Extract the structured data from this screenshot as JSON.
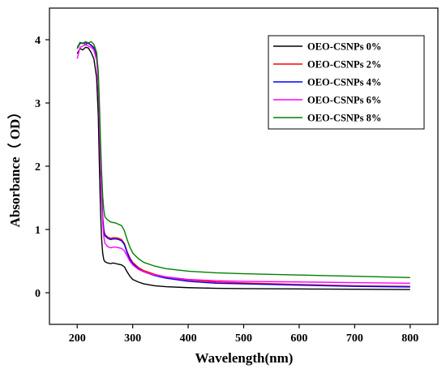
{
  "chart_data": {
    "type": "line",
    "title": "",
    "xlabel": "Wavelength(nm)",
    "ylabel": "Absorbance（ OD）",
    "xlim": [
      150,
      850
    ],
    "ylim": [
      -0.5,
      4.5
    ],
    "xticks": [
      200,
      300,
      400,
      500,
      600,
      700,
      800
    ],
    "yticks": [
      0,
      1,
      2,
      3,
      4
    ],
    "grid": false,
    "legend_position": "top-right",
    "series": [
      {
        "name": "OEO-CSNPs 0%",
        "color": "#000000",
        "points": [
          [
            200,
            3.78
          ],
          [
            205,
            3.86
          ],
          [
            210,
            3.84
          ],
          [
            215,
            3.88
          ],
          [
            220,
            3.87
          ],
          [
            225,
            3.8
          ],
          [
            230,
            3.7
          ],
          [
            235,
            3.4
          ],
          [
            238,
            2.8
          ],
          [
            240,
            2.0
          ],
          [
            242,
            1.3
          ],
          [
            244,
            0.85
          ],
          [
            246,
            0.62
          ],
          [
            248,
            0.52
          ],
          [
            250,
            0.49
          ],
          [
            255,
            0.47
          ],
          [
            260,
            0.46
          ],
          [
            265,
            0.47
          ],
          [
            270,
            0.46
          ],
          [
            275,
            0.45
          ],
          [
            280,
            0.44
          ],
          [
            285,
            0.41
          ],
          [
            290,
            0.33
          ],
          [
            295,
            0.26
          ],
          [
            300,
            0.21
          ],
          [
            310,
            0.17
          ],
          [
            320,
            0.14
          ],
          [
            340,
            0.11
          ],
          [
            360,
            0.095
          ],
          [
            400,
            0.08
          ],
          [
            450,
            0.07
          ],
          [
            500,
            0.065
          ],
          [
            600,
            0.06
          ],
          [
            700,
            0.055
          ],
          [
            800,
            0.05
          ]
        ]
      },
      {
        "name": "OEO-CSNPs 2%",
        "color": "#ff0000",
        "points": [
          [
            200,
            3.88
          ],
          [
            205,
            3.95
          ],
          [
            210,
            3.94
          ],
          [
            215,
            3.96
          ],
          [
            220,
            3.94
          ],
          [
            225,
            3.92
          ],
          [
            230,
            3.88
          ],
          [
            235,
            3.75
          ],
          [
            238,
            3.4
          ],
          [
            240,
            2.8
          ],
          [
            242,
            2.1
          ],
          [
            244,
            1.6
          ],
          [
            246,
            1.2
          ],
          [
            248,
            1.0
          ],
          [
            250,
            0.92
          ],
          [
            255,
            0.88
          ],
          [
            260,
            0.86
          ],
          [
            265,
            0.87
          ],
          [
            270,
            0.87
          ],
          [
            275,
            0.86
          ],
          [
            280,
            0.84
          ],
          [
            285,
            0.78
          ],
          [
            290,
            0.65
          ],
          [
            295,
            0.55
          ],
          [
            300,
            0.48
          ],
          [
            310,
            0.4
          ],
          [
            320,
            0.35
          ],
          [
            340,
            0.29
          ],
          [
            360,
            0.25
          ],
          [
            400,
            0.2
          ],
          [
            450,
            0.17
          ],
          [
            500,
            0.155
          ],
          [
            600,
            0.13
          ],
          [
            700,
            0.11
          ],
          [
            800,
            0.1
          ]
        ]
      },
      {
        "name": "OEO-CSNPs 4%",
        "color": "#0000ff",
        "points": [
          [
            200,
            3.86
          ],
          [
            205,
            3.94
          ],
          [
            210,
            3.95
          ],
          [
            215,
            3.93
          ],
          [
            220,
            3.95
          ],
          [
            225,
            3.91
          ],
          [
            230,
            3.87
          ],
          [
            235,
            3.72
          ],
          [
            238,
            3.35
          ],
          [
            240,
            2.75
          ],
          [
            242,
            2.05
          ],
          [
            244,
            1.55
          ],
          [
            246,
            1.17
          ],
          [
            248,
            0.98
          ],
          [
            250,
            0.9
          ],
          [
            255,
            0.86
          ],
          [
            260,
            0.84
          ],
          [
            265,
            0.85
          ],
          [
            270,
            0.85
          ],
          [
            275,
            0.84
          ],
          [
            280,
            0.82
          ],
          [
            285,
            0.76
          ],
          [
            290,
            0.63
          ],
          [
            295,
            0.53
          ],
          [
            300,
            0.46
          ],
          [
            310,
            0.38
          ],
          [
            320,
            0.33
          ],
          [
            340,
            0.27
          ],
          [
            360,
            0.23
          ],
          [
            400,
            0.18
          ],
          [
            450,
            0.15
          ],
          [
            500,
            0.14
          ],
          [
            600,
            0.12
          ],
          [
            700,
            0.1
          ],
          [
            800,
            0.09
          ]
        ]
      },
      {
        "name": "OEO-CSNPs 6%",
        "color": "#ff00ff",
        "points": [
          [
            200,
            3.7
          ],
          [
            205,
            3.88
          ],
          [
            210,
            3.9
          ],
          [
            215,
            3.92
          ],
          [
            220,
            3.9
          ],
          [
            225,
            3.88
          ],
          [
            230,
            3.84
          ],
          [
            235,
            3.68
          ],
          [
            238,
            3.3
          ],
          [
            240,
            2.7
          ],
          [
            242,
            2.0
          ],
          [
            244,
            1.48
          ],
          [
            246,
            1.1
          ],
          [
            248,
            0.88
          ],
          [
            250,
            0.78
          ],
          [
            255,
            0.73
          ],
          [
            260,
            0.71
          ],
          [
            265,
            0.72
          ],
          [
            270,
            0.72
          ],
          [
            275,
            0.71
          ],
          [
            280,
            0.7
          ],
          [
            285,
            0.66
          ],
          [
            290,
            0.58
          ],
          [
            295,
            0.5
          ],
          [
            300,
            0.44
          ],
          [
            310,
            0.37
          ],
          [
            320,
            0.33
          ],
          [
            340,
            0.28
          ],
          [
            360,
            0.25
          ],
          [
            400,
            0.21
          ],
          [
            450,
            0.19
          ],
          [
            500,
            0.18
          ],
          [
            600,
            0.17
          ],
          [
            700,
            0.16
          ],
          [
            800,
            0.15
          ]
        ]
      },
      {
        "name": "OEO-CSNPs 8%",
        "color": "#008000",
        "points": [
          [
            200,
            3.86
          ],
          [
            205,
            3.96
          ],
          [
            210,
            3.94
          ],
          [
            215,
            3.97
          ],
          [
            220,
            3.95
          ],
          [
            225,
            3.97
          ],
          [
            230,
            3.93
          ],
          [
            235,
            3.8
          ],
          [
            238,
            3.5
          ],
          [
            240,
            3.0
          ],
          [
            242,
            2.4
          ],
          [
            244,
            1.9
          ],
          [
            246,
            1.52
          ],
          [
            248,
            1.3
          ],
          [
            250,
            1.2
          ],
          [
            255,
            1.15
          ],
          [
            260,
            1.12
          ],
          [
            265,
            1.11
          ],
          [
            270,
            1.1
          ],
          [
            275,
            1.08
          ],
          [
            280,
            1.06
          ],
          [
            285,
            0.98
          ],
          [
            290,
            0.84
          ],
          [
            295,
            0.72
          ],
          [
            300,
            0.63
          ],
          [
            310,
            0.54
          ],
          [
            320,
            0.48
          ],
          [
            340,
            0.42
          ],
          [
            360,
            0.38
          ],
          [
            400,
            0.34
          ],
          [
            450,
            0.315
          ],
          [
            500,
            0.3
          ],
          [
            600,
            0.28
          ],
          [
            700,
            0.26
          ],
          [
            800,
            0.24
          ]
        ]
      }
    ]
  }
}
